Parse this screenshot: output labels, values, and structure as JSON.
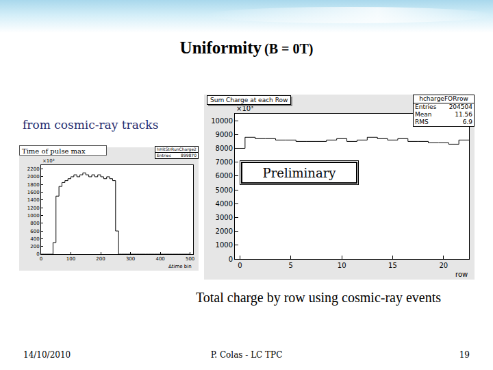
{
  "slide": {
    "title": "Uniformity",
    "title_suffix": "(B = 0T)",
    "subtitle": "from cosmic-ray tracks",
    "stamp": "Preliminary",
    "caption": "Total charge by row using cosmic-ray  events",
    "footer": {
      "date": "14/10/2010",
      "author": "P. Colas - LC TPC",
      "page": 19
    }
  },
  "chart_data": [
    {
      "type": "histogram",
      "annotation": "Time of pulse max",
      "stats": {
        "title": "hHitStrRunCharge2",
        "rows": [
          {
            "label": "Entries",
            "value": 899870
          }
        ]
      },
      "x_label": "Δtime bin",
      "y_multiplier": "×10³",
      "bins": [
        0,
        10,
        20,
        30,
        40,
        50,
        60,
        70,
        80,
        90,
        100,
        110,
        120,
        130,
        140,
        150,
        160,
        170,
        180,
        190,
        200,
        210,
        220,
        230,
        240,
        250,
        260,
        270,
        280,
        290,
        300,
        310,
        320,
        330,
        340,
        350,
        360,
        370,
        380,
        390,
        400,
        410,
        420,
        430,
        440,
        450,
        460,
        470,
        480,
        490,
        500
      ],
      "values": [
        0,
        0,
        0,
        0,
        300,
        1500,
        1750,
        1850,
        1900,
        1950,
        2000,
        2050,
        2000,
        2050,
        2100,
        2050,
        2000,
        2050,
        2000,
        2050,
        2000,
        1950,
        2000,
        1950,
        1900,
        600,
        0,
        0,
        0,
        0,
        0,
        0,
        0,
        0,
        0,
        0,
        0,
        0,
        0,
        0,
        0,
        0,
        0,
        0,
        0,
        0,
        0,
        0,
        0,
        0
      ],
      "color": "#000000",
      "xlim": [
        0,
        510
      ],
      "xticks": [
        0,
        100,
        200,
        300,
        400,
        500
      ],
      "ylim": [
        0,
        2300
      ],
      "yticks": [
        0,
        200,
        400,
        600,
        800,
        1000,
        1200,
        1400,
        1600,
        1800,
        2000,
        2200
      ],
      "grid": false
    },
    {
      "type": "histogram",
      "title": "Sum Charge at each Row",
      "stats": {
        "title": "hchargeFORrow",
        "rows": [
          {
            "label": "Entries",
            "value": 204504
          },
          {
            "label": "Mean",
            "value": 11.56
          },
          {
            "label": "RMS",
            "value": 6.9
          }
        ]
      },
      "x_label": "row",
      "y_multiplier": "×10³",
      "bins": [
        -0.5,
        0.5,
        1.5,
        2.5,
        3.5,
        4.5,
        5.5,
        6.5,
        7.5,
        8.5,
        9.5,
        10.5,
        11.5,
        12.5,
        13.5,
        14.5,
        15.5,
        16.5,
        17.5,
        18.5,
        19.5,
        20.5,
        21.5,
        22.5
      ],
      "values": [
        8000,
        8800,
        8700,
        8700,
        8600,
        8600,
        8500,
        8500,
        8500,
        8600,
        8700,
        8500,
        8600,
        8800,
        8700,
        8600,
        8700,
        8500,
        8500,
        8400,
        8400,
        8300,
        8600
      ],
      "color": "#000000",
      "xlim": [
        -0.5,
        22.5
      ],
      "xticks": [
        0,
        5,
        10,
        15,
        20
      ],
      "ylim": [
        0,
        10500
      ],
      "yticks": [
        0,
        1000,
        2000,
        3000,
        4000,
        5000,
        6000,
        7000,
        8000,
        9000,
        10000
      ],
      "grid": false
    }
  ]
}
